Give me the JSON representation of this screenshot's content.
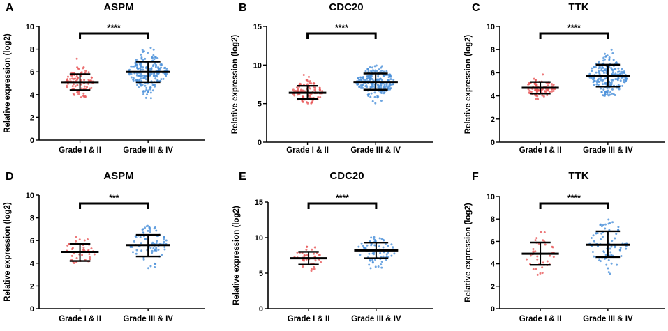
{
  "colors": {
    "low": "#e8595a",
    "high": "#4a90d9",
    "ink": "#000000"
  },
  "y_axis_label": "Relative expression (log2)",
  "chart_data": [
    {
      "type": "scatter",
      "panel": "A",
      "title": "ASPM",
      "ylabel": "Relative expression (log2)",
      "ylim": [
        0,
        10
      ],
      "yticks": [
        0,
        2,
        4,
        6,
        8,
        10
      ],
      "categories": [
        "Grade I & II",
        "Grade III & IV"
      ],
      "series": [
        {
          "name": "Grade I & II",
          "color_key": "low",
          "mean": 5.1,
          "sd_low": 4.4,
          "sd_high": 5.8,
          "min": 3.7,
          "max": 7.5,
          "n": 90
        },
        {
          "name": "Grade III & IV",
          "color_key": "high",
          "mean": 6.0,
          "sd_low": 5.1,
          "sd_high": 6.9,
          "min": 3.6,
          "max": 8.5,
          "n": 200
        }
      ],
      "significance": "****"
    },
    {
      "type": "scatter",
      "panel": "B",
      "title": "CDC20",
      "ylabel": "Relative expression (log2)",
      "ylim": [
        0,
        15
      ],
      "yticks": [
        0,
        5,
        10,
        15
      ],
      "categories": [
        "Grade I & II",
        "Grade III & IV"
      ],
      "series": [
        {
          "name": "Grade I & II",
          "color_key": "low",
          "mean": 6.4,
          "sd_low": 5.6,
          "sd_high": 7.3,
          "min": 5.0,
          "max": 9.7,
          "n": 90
        },
        {
          "name": "Grade III & IV",
          "color_key": "high",
          "mean": 7.8,
          "sd_low": 6.8,
          "sd_high": 8.9,
          "min": 5.0,
          "max": 10.4,
          "n": 200
        }
      ],
      "significance": "****"
    },
    {
      "type": "scatter",
      "panel": "C",
      "title": "TTK",
      "ylabel": "Relative expression (log2)",
      "ylim": [
        0,
        10
      ],
      "yticks": [
        0,
        2,
        4,
        6,
        8,
        10
      ],
      "categories": [
        "Grade I & II",
        "Grade III & IV"
      ],
      "series": [
        {
          "name": "Grade I & II",
          "color_key": "low",
          "mean": 4.7,
          "sd_low": 4.2,
          "sd_high": 5.2,
          "min": 3.7,
          "max": 6.2,
          "n": 90
        },
        {
          "name": "Grade III & IV",
          "color_key": "high",
          "mean": 5.7,
          "sd_low": 4.8,
          "sd_high": 6.7,
          "min": 4.0,
          "max": 8.2,
          "n": 200
        }
      ],
      "significance": "****"
    },
    {
      "type": "scatter",
      "panel": "D",
      "title": "ASPM",
      "ylabel": "Relative expression (log2)",
      "ylim": [
        0,
        10
      ],
      "yticks": [
        0,
        2,
        4,
        6,
        8,
        10
      ],
      "categories": [
        "Grade I & II",
        "Grade III & IV"
      ],
      "series": [
        {
          "name": "Grade I & II",
          "color_key": "low",
          "mean": 5.0,
          "sd_low": 4.2,
          "sd_high": 5.7,
          "min": 4.0,
          "max": 6.5,
          "n": 40
        },
        {
          "name": "Grade III & IV",
          "color_key": "high",
          "mean": 5.6,
          "sd_low": 4.6,
          "sd_high": 6.5,
          "min": 3.5,
          "max": 7.3,
          "n": 80
        }
      ],
      "significance": "***"
    },
    {
      "type": "scatter",
      "panel": "E",
      "title": "CDC20",
      "ylabel": "Relative expression (log2)",
      "ylim": [
        0,
        15
      ],
      "yticks": [
        0,
        5,
        10,
        15
      ],
      "categories": [
        "Grade I & II",
        "Grade III & IV"
      ],
      "series": [
        {
          "name": "Grade I & II",
          "color_key": "low",
          "mean": 7.1,
          "sd_low": 6.2,
          "sd_high": 8.0,
          "min": 5.1,
          "max": 8.8,
          "n": 40
        },
        {
          "name": "Grade III & IV",
          "color_key": "high",
          "mean": 8.2,
          "sd_low": 7.1,
          "sd_high": 9.3,
          "min": 5.6,
          "max": 10.7,
          "n": 80
        }
      ],
      "significance": "****"
    },
    {
      "type": "scatter",
      "panel": "F",
      "title": "TTK",
      "ylabel": "Relative expression (log2)",
      "ylim": [
        0,
        10
      ],
      "yticks": [
        0,
        2,
        4,
        6,
        8,
        10
      ],
      "categories": [
        "Grade I & II",
        "Grade III & IV"
      ],
      "series": [
        {
          "name": "Grade I & II",
          "color_key": "low",
          "mean": 4.9,
          "sd_low": 3.9,
          "sd_high": 5.9,
          "min": 3.0,
          "max": 7.9,
          "n": 40
        },
        {
          "name": "Grade III & IV",
          "color_key": "high",
          "mean": 5.7,
          "sd_low": 4.6,
          "sd_high": 6.9,
          "min": 3.0,
          "max": 8.7,
          "n": 80
        }
      ],
      "significance": "****"
    }
  ]
}
